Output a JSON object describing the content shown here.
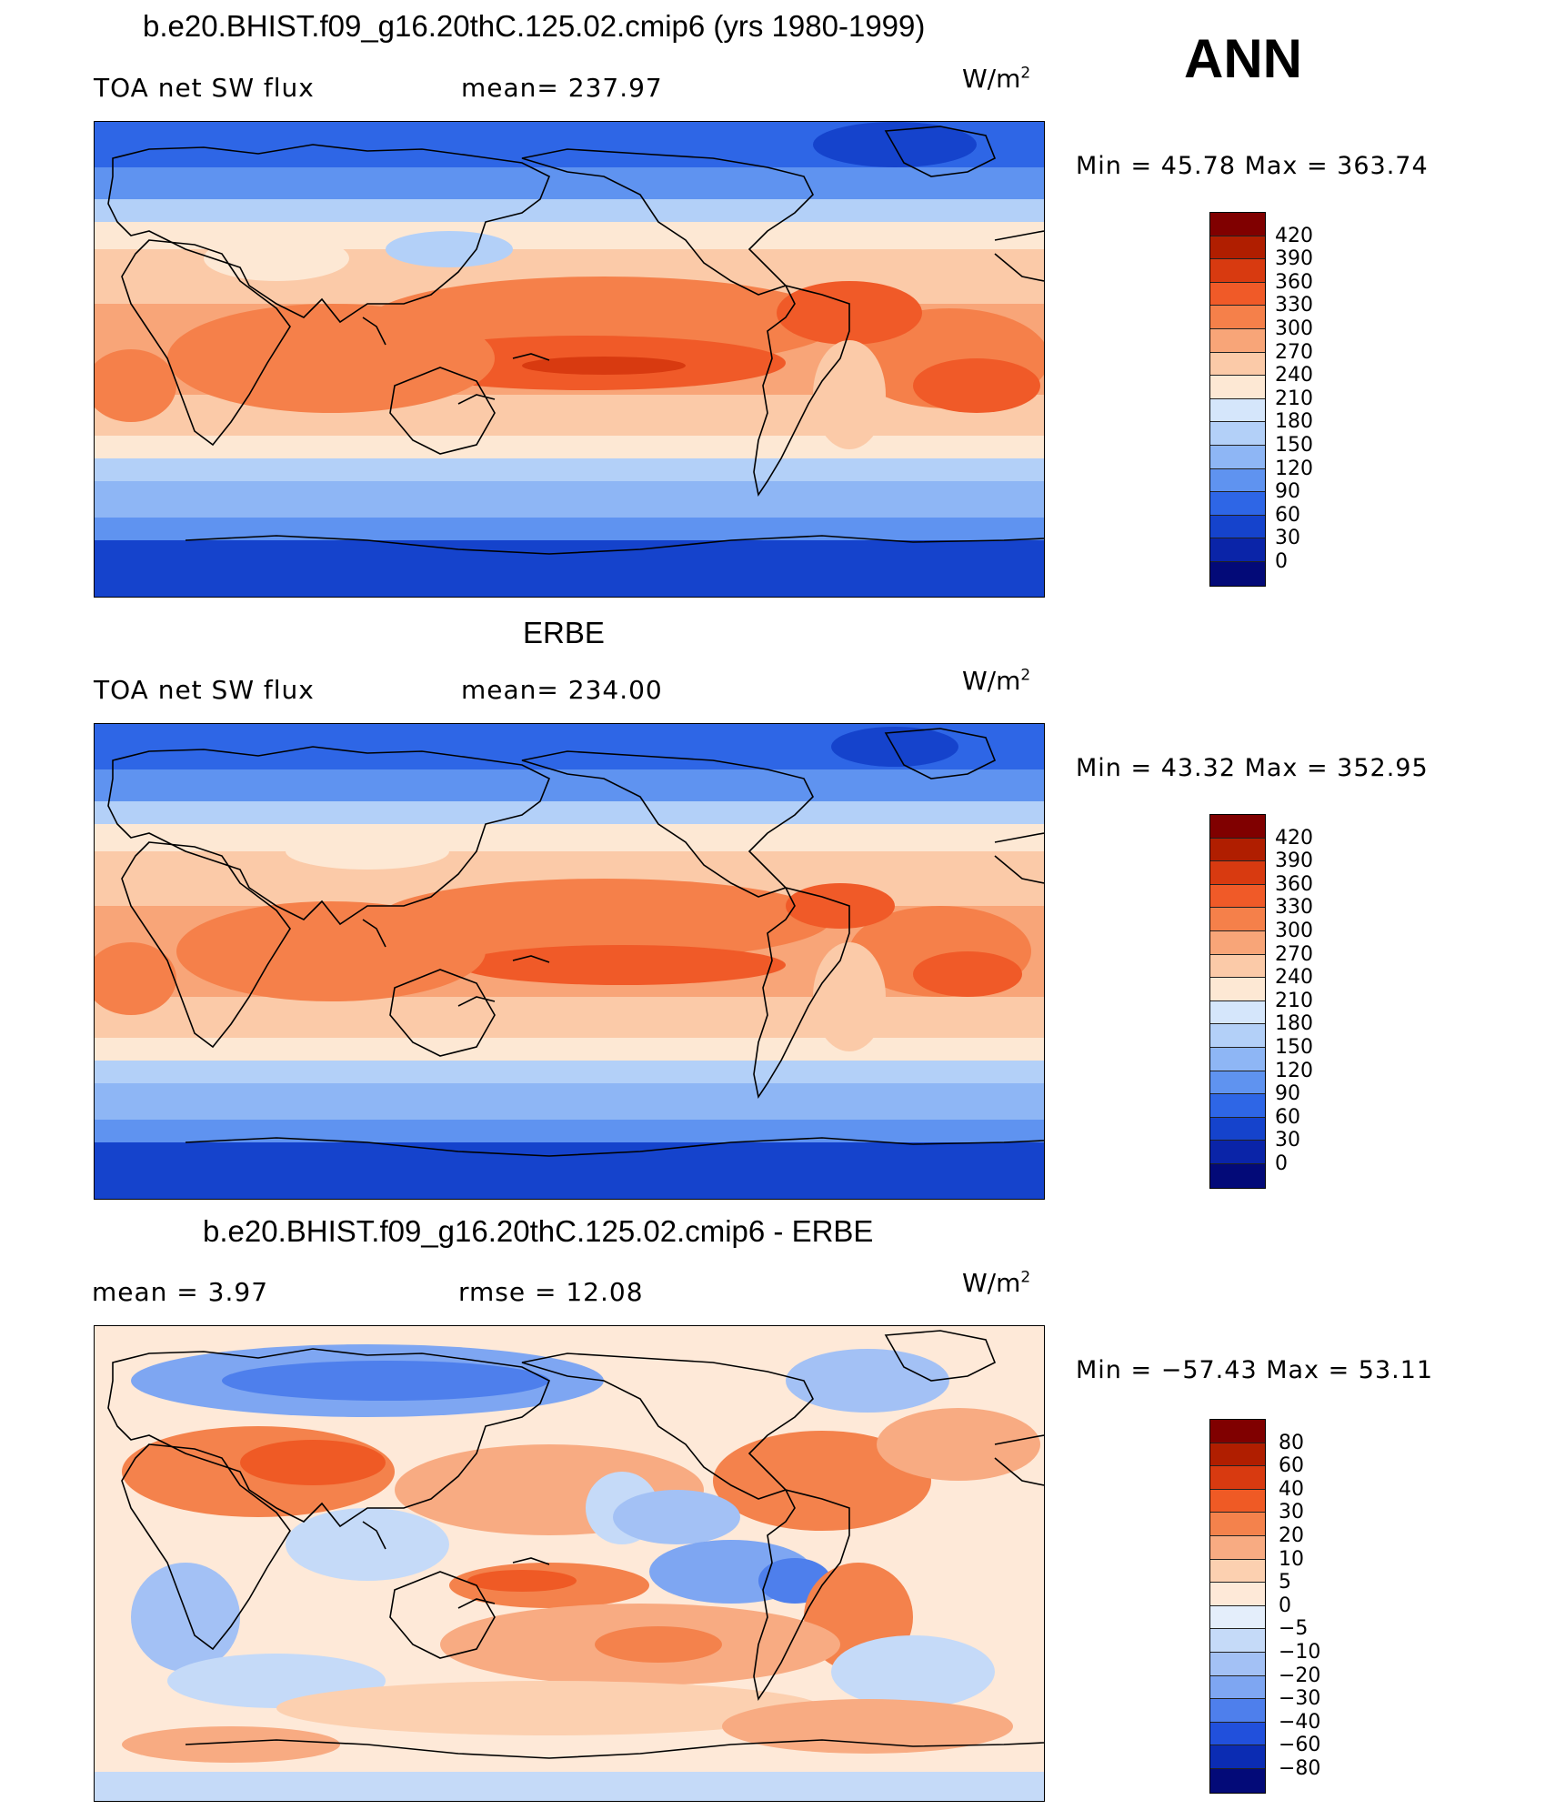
{
  "season": "ANN",
  "units_base": "W/m",
  "units_exp": "2",
  "panels": [
    {
      "id": "model",
      "title": "b.e20.BHIST.f09_g16.20thC.125.02.cmip6 (yrs 1980-1999)",
      "left_label": "TOA net SW flux",
      "stat_label": "mean= 237.97",
      "minmax": "Min =   45.78  Max  =  363.74",
      "levels": [
        "420",
        "390",
        "360",
        "330",
        "300",
        "270",
        "240",
        "210",
        "180",
        "150",
        "120",
        "90",
        "60",
        "30",
        "0"
      ]
    },
    {
      "id": "obs",
      "title": "ERBE",
      "left_label": "TOA net SW flux",
      "stat_label": "mean= 234.00",
      "minmax": "Min =   43.32  Max  =  352.95",
      "levels": [
        "420",
        "390",
        "360",
        "330",
        "300",
        "270",
        "240",
        "210",
        "180",
        "150",
        "120",
        "90",
        "60",
        "30",
        "0"
      ]
    },
    {
      "id": "diff",
      "title": "b.e20.BHIST.f09_g16.20thC.125.02.cmip6 - ERBE",
      "left_label": "mean  =      3.97",
      "stat_label": "rmse  =     12.08",
      "minmax": "Min  =  −57.43  Max  =    53.11",
      "levels": [
        "80",
        "60",
        "40",
        "30",
        "20",
        "10",
        "5",
        "0",
        "−5",
        "−10",
        "−20",
        "−30",
        "−40",
        "−60",
        "−80"
      ]
    }
  ],
  "colors": {
    "abs_scale": [
      "#800000",
      "#b01e00",
      "#d83a10",
      "#f05a28",
      "#f5804a",
      "#f8a578",
      "#fbcaa8",
      "#fde8d4",
      "#d5e6fb",
      "#b3d0f8",
      "#8eb6f5",
      "#5f93f0",
      "#2e66e6",
      "#1543cc",
      "#0a24a8",
      "#030a78"
    ],
    "diff_scale": [
      "#800000",
      "#b01e00",
      "#d83a10",
      "#ef5a25",
      "#f4824c",
      "#f8ab82",
      "#fcd0b0",
      "#fee9d8",
      "#e4eefb",
      "#c5daf8",
      "#a3c1f5",
      "#7ea6f2",
      "#4e7fec",
      "#2150dc",
      "#0b2cb3",
      "#030a78"
    ]
  }
}
